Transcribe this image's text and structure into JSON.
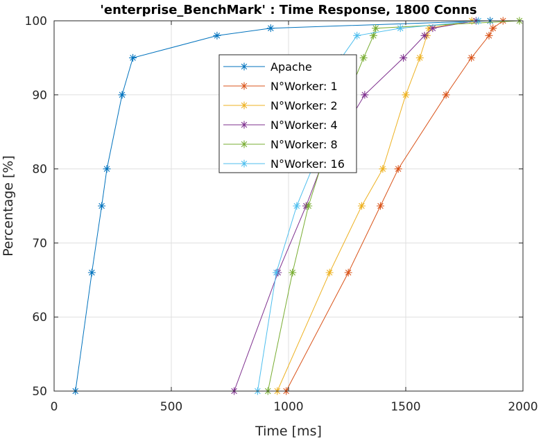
{
  "chart_data": {
    "type": "line",
    "title": "'enterprise_BenchMark' : Time Response, 1800 Conns",
    "xlabel": "Time [ms]",
    "ylabel": "Percentage [%]",
    "xlim": [
      0,
      2000
    ],
    "ylim": [
      50,
      100
    ],
    "xticks": [
      "0",
      "500",
      "1000",
      "1500",
      "2000"
    ],
    "yticks": [
      "50",
      "60",
      "70",
      "80",
      "90",
      "100"
    ],
    "grid": true,
    "legend_position": "upper-center",
    "y": [
      50,
      66,
      75,
      80,
      90,
      95,
      98,
      99,
      100
    ],
    "series": [
      {
        "name": "Apache",
        "color": "#0072BD",
        "x": [
          91,
          161,
          203,
          225,
          290,
          336,
          695,
          924,
          1860
        ]
      },
      {
        "name": "N°Worker: 1",
        "color": "#D95319",
        "x": [
          990,
          1255,
          1392,
          1468,
          1672,
          1780,
          1855,
          1872,
          1915
        ]
      },
      {
        "name": "N°Worker: 2",
        "color": "#EDB120",
        "x": [
          952,
          1175,
          1312,
          1402,
          1500,
          1560,
          1590,
          1600,
          1782
        ]
      },
      {
        "name": "N°Worker: 4",
        "color": "#7E2F8E",
        "x": [
          768,
          955,
          1075,
          1135,
          1325,
          1490,
          1580,
          1615,
          1800
        ]
      },
      {
        "name": "N°Worker: 8",
        "color": "#77AC30",
        "x": [
          912,
          1017,
          1085,
          1135,
          1255,
          1320,
          1362,
          1372,
          1985
        ]
      },
      {
        "name": "N°Worker: 16",
        "color": "#4DBEEE",
        "x": [
          868,
          948,
          1035,
          1100,
          1195,
          1225,
          1292,
          1477,
          1810
        ]
      }
    ]
  }
}
